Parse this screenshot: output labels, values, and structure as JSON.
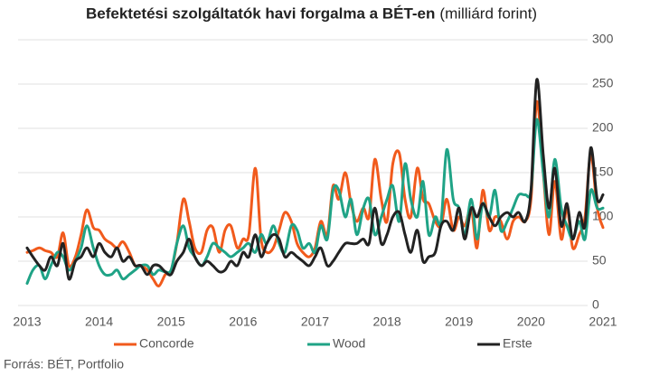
{
  "chart_data": {
    "type": "line",
    "title": "Befektetési szolgáltatók havi forgalma a BÉT-en",
    "subtitle": "(milliárd forint)",
    "source": "Forrás: BÉT, Portfolio",
    "x": [
      2013,
      2013.08,
      2013.17,
      2013.25,
      2013.33,
      2013.42,
      2013.5,
      2013.58,
      2013.67,
      2013.75,
      2013.83,
      2013.92,
      2014,
      2014.08,
      2014.17,
      2014.25,
      2014.33,
      2014.42,
      2014.5,
      2014.58,
      2014.67,
      2014.75,
      2014.83,
      2014.92,
      2015,
      2015.08,
      2015.17,
      2015.25,
      2015.33,
      2015.42,
      2015.5,
      2015.58,
      2015.67,
      2015.75,
      2015.83,
      2015.92,
      2016,
      2016.08,
      2016.17,
      2016.25,
      2016.33,
      2016.42,
      2016.5,
      2016.58,
      2016.67,
      2016.75,
      2016.83,
      2016.92,
      2017,
      2017.08,
      2017.17,
      2017.25,
      2017.33,
      2017.42,
      2017.5,
      2017.58,
      2017.67,
      2017.75,
      2017.83,
      2017.92,
      2018,
      2018.08,
      2018.17,
      2018.25,
      2018.33,
      2018.42,
      2018.5,
      2018.58,
      2018.67,
      2018.75,
      2018.83,
      2018.92,
      2019,
      2019.08,
      2019.17,
      2019.25,
      2019.33,
      2019.42,
      2019.5,
      2019.58,
      2019.67,
      2019.75,
      2019.83,
      2019.92,
      2020,
      2020.08,
      2020.17,
      2020.25,
      2020.33,
      2020.42,
      2020.5,
      2020.58,
      2020.67,
      2020.75,
      2020.83,
      2020.92,
      2021
    ],
    "series": [
      {
        "name": "Concorde",
        "color": "#f15a1c",
        "values": [
          60,
          62,
          65,
          62,
          60,
          55,
          82,
          45,
          55,
          80,
          108,
          88,
          85,
          75,
          70,
          65,
          72,
          60,
          45,
          45,
          40,
          30,
          22,
          35,
          40,
          70,
          120,
          95,
          65,
          60,
          85,
          88,
          60,
          85,
          90,
          65,
          75,
          80,
          155,
          75,
          60,
          65,
          85,
          105,
          95,
          70,
          60,
          55,
          65,
          95,
          80,
          135,
          120,
          150,
          115,
          95,
          110,
          100,
          165,
          120,
          95,
          160,
          172,
          120,
          100,
          155,
          120,
          115,
          95,
          90,
          120,
          85,
          100,
          90,
          110,
          65,
          130,
          85,
          100,
          95,
          75,
          95,
          100,
          95,
          120,
          230,
          150,
          80,
          140,
          75,
          110,
          65,
          80,
          100,
          170,
          110,
          88
        ]
      },
      {
        "name": "Wood",
        "color": "#1fa386",
        "values": [
          25,
          40,
          45,
          30,
          45,
          60,
          55,
          40,
          50,
          65,
          90,
          65,
          45,
          35,
          35,
          40,
          30,
          35,
          40,
          45,
          45,
          35,
          40,
          38,
          40,
          70,
          90,
          65,
          55,
          45,
          55,
          70,
          65,
          60,
          55,
          60,
          65,
          70,
          60,
          80,
          70,
          90,
          70,
          60,
          90,
          85,
          65,
          70,
          60,
          90,
          75,
          130,
          130,
          100,
          120,
          80,
          110,
          120,
          80,
          100,
          120,
          135,
          95,
          160,
          120,
          100,
          140,
          80,
          100,
          95,
          176,
          120,
          110,
          80,
          120,
          75,
          115,
          100,
          130,
          85,
          95,
          110,
          125,
          125,
          130,
          210,
          150,
          100,
          165,
          110,
          90,
          75,
          95,
          75,
          130,
          110,
          110
        ]
      },
      {
        "name": "Erste",
        "color": "#222222",
        "values": [
          65,
          55,
          45,
          40,
          55,
          45,
          70,
          30,
          50,
          55,
          65,
          55,
          70,
          60,
          55,
          65,
          50,
          55,
          45,
          45,
          35,
          45,
          45,
          38,
          35,
          50,
          60,
          75,
          55,
          45,
          50,
          45,
          38,
          40,
          50,
          45,
          60,
          55,
          80,
          55,
          70,
          80,
          75,
          55,
          60,
          55,
          50,
          45,
          55,
          65,
          45,
          50,
          60,
          70,
          70,
          70,
          75,
          70,
          110,
          70,
          80,
          100,
          105,
          80,
          60,
          85,
          50,
          55,
          60,
          90,
          95,
          85,
          110,
          75,
          110,
          100,
          115,
          100,
          90,
          100,
          105,
          100,
          105,
          95,
          130,
          255,
          170,
          110,
          155,
          90,
          115,
          75,
          105,
          90,
          178,
          120,
          125
        ]
      }
    ],
    "xlim": [
      2013,
      2021
    ],
    "xticks": [
      2013,
      2014,
      2015,
      2016,
      2017,
      2018,
      2019,
      2020,
      2021
    ],
    "ylim": [
      0,
      300
    ],
    "yticks": [
      0,
      50,
      100,
      150,
      200,
      250,
      300
    ],
    "grid": true
  }
}
